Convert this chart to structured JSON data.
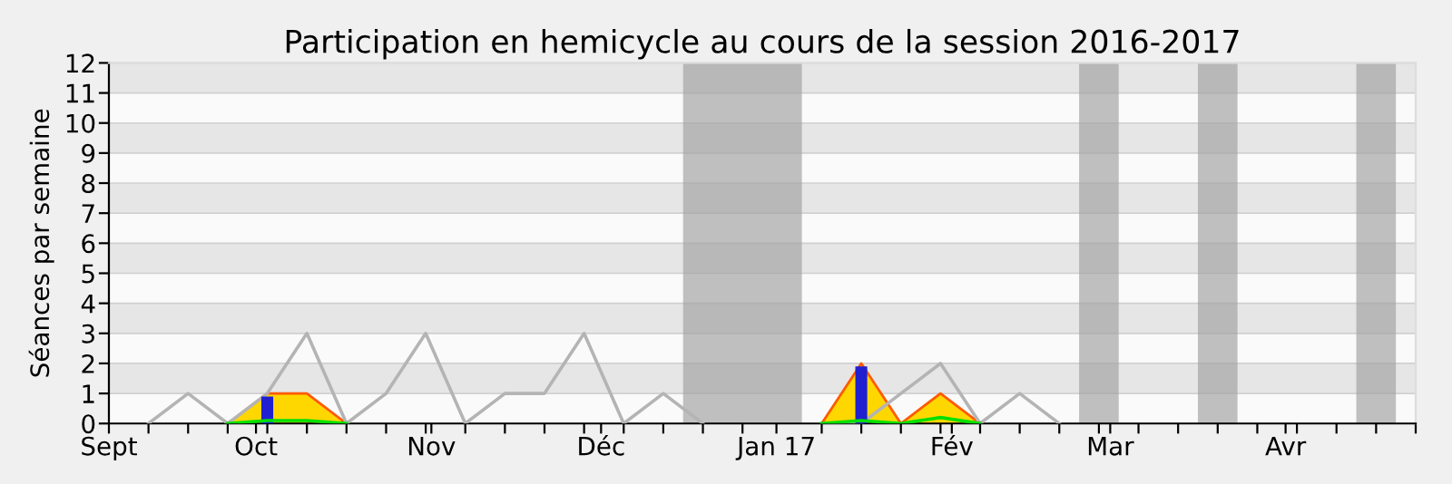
{
  "chart_data": {
    "type": "line",
    "title": "Participation en hemicycle au cours de la session 2016-2017",
    "ylabel": "Séances par semaine",
    "x": [
      "2016-09-12",
      "2016-09-19",
      "2016-09-26",
      "2016-10-03",
      "2016-10-10",
      "2016-10-17",
      "2016-10-24",
      "2016-10-31",
      "2016-11-07",
      "2016-11-14",
      "2016-11-21",
      "2016-11-28",
      "2016-12-05",
      "2016-12-12",
      "2016-12-19",
      "2016-12-26",
      "2017-01-02",
      "2017-01-09",
      "2017-01-16",
      "2017-01-23",
      "2017-01-30",
      "2017-02-06",
      "2017-02-13",
      "2017-02-20"
    ],
    "series": [
      {
        "color": "#b4b4b4",
        "values": [
          0,
          1,
          0,
          1,
          3,
          0,
          1,
          3,
          0,
          1,
          1,
          3,
          0,
          1,
          0,
          null,
          null,
          0,
          0,
          1,
          2,
          0,
          1,
          0
        ]
      },
      {
        "type": "area",
        "color": "#ffd700",
        "values": [
          null,
          null,
          0,
          1,
          1,
          0,
          null,
          null,
          null,
          null,
          null,
          null,
          null,
          null,
          null,
          null,
          null,
          0,
          2,
          0,
          1,
          0,
          null,
          null
        ]
      },
      {
        "type": "bar",
        "color": "#2020d0",
        "values": [
          null,
          null,
          null,
          0.9,
          null,
          null,
          null,
          null,
          null,
          null,
          null,
          null,
          null,
          null,
          null,
          null,
          null,
          null,
          1.9,
          null,
          null,
          null,
          null,
          null
        ]
      },
      {
        "type": "line",
        "color": "#00e000",
        "values": [
          null,
          null,
          0,
          0.1,
          0.1,
          0,
          null,
          null,
          null,
          null,
          null,
          null,
          null,
          null,
          null,
          null,
          null,
          0,
          0.1,
          0,
          0.2,
          0,
          null,
          null
        ]
      }
    ],
    "bands": [
      {
        "axis": "x",
        "from": "2016-12-15T12:00",
        "to": "2017-01-05T12:00",
        "color": "#a0a0a0"
      },
      {
        "axis": "x",
        "from": "2017-02-23T12:00",
        "to": "2017-03-02T12:00",
        "color": "#a0a0a0"
      },
      {
        "axis": "x",
        "from": "2017-03-16T12:00",
        "to": "2017-03-23T12:00",
        "color": "#a0a0a0"
      },
      {
        "axis": "x",
        "from": "2017-04-13T12:00",
        "to": "2017-04-20T12:00",
        "color": "#a0a0a0"
      }
    ],
    "xlim": [
      "2016-09-05",
      "2017-04-24"
    ],
    "xticks": [
      {
        "value": "2016-09-05",
        "label": "Sept"
      },
      {
        "value": "2016-09-12",
        "label": null
      },
      {
        "value": "2016-09-19",
        "label": null
      },
      {
        "value": "2016-09-26",
        "label": null
      },
      {
        "value": "2016-10-01",
        "label": "Oct"
      },
      {
        "value": "2016-10-03",
        "label": null
      },
      {
        "value": "2016-10-10",
        "label": null
      },
      {
        "value": "2016-10-17",
        "label": null
      },
      {
        "value": "2016-10-24",
        "label": null
      },
      {
        "value": "2016-10-31",
        "label": null
      },
      {
        "value": "2016-11-01",
        "label": "Nov"
      },
      {
        "value": "2016-11-07",
        "label": null
      },
      {
        "value": "2016-11-14",
        "label": null
      },
      {
        "value": "2016-11-21",
        "label": null
      },
      {
        "value": "2016-11-28",
        "label": null
      },
      {
        "value": "2016-12-01",
        "label": "Déc"
      },
      {
        "value": "2016-12-05",
        "label": null
      },
      {
        "value": "2016-12-12",
        "label": null
      },
      {
        "value": "2016-12-19",
        "label": null
      },
      {
        "value": "2016-12-26",
        "label": null
      },
      {
        "value": "2017-01-01",
        "label": "Jan 17"
      },
      {
        "value": "2017-01-09",
        "label": null
      },
      {
        "value": "2017-01-16",
        "label": null
      },
      {
        "value": "2017-01-23",
        "label": null
      },
      {
        "value": "2017-01-30",
        "label": null
      },
      {
        "value": "2017-02-01",
        "label": "Fév"
      },
      {
        "value": "2017-02-06",
        "label": null
      },
      {
        "value": "2017-02-13",
        "label": null
      },
      {
        "value": "2017-02-20",
        "label": null
      },
      {
        "value": "2017-02-27",
        "label": null
      },
      {
        "value": "2017-03-01",
        "label": "Mar"
      },
      {
        "value": "2017-03-06",
        "label": null
      },
      {
        "value": "2017-03-13",
        "label": null
      },
      {
        "value": "2017-03-20",
        "label": null
      },
      {
        "value": "2017-03-27",
        "label": null
      },
      {
        "value": "2017-04-01",
        "label": "Avr"
      },
      {
        "value": "2017-04-03",
        "label": null
      },
      {
        "value": "2017-04-10",
        "label": null
      },
      {
        "value": "2017-04-17",
        "label": null
      },
      {
        "value": "2017-04-24",
        "label": null
      }
    ],
    "ylim": [
      0,
      12
    ],
    "yticks": [
      0,
      1,
      2,
      3,
      4,
      5,
      6,
      7,
      8,
      9,
      10,
      11,
      12
    ],
    "grid": "y",
    "marker": "none",
    "line_style": "solid"
  }
}
